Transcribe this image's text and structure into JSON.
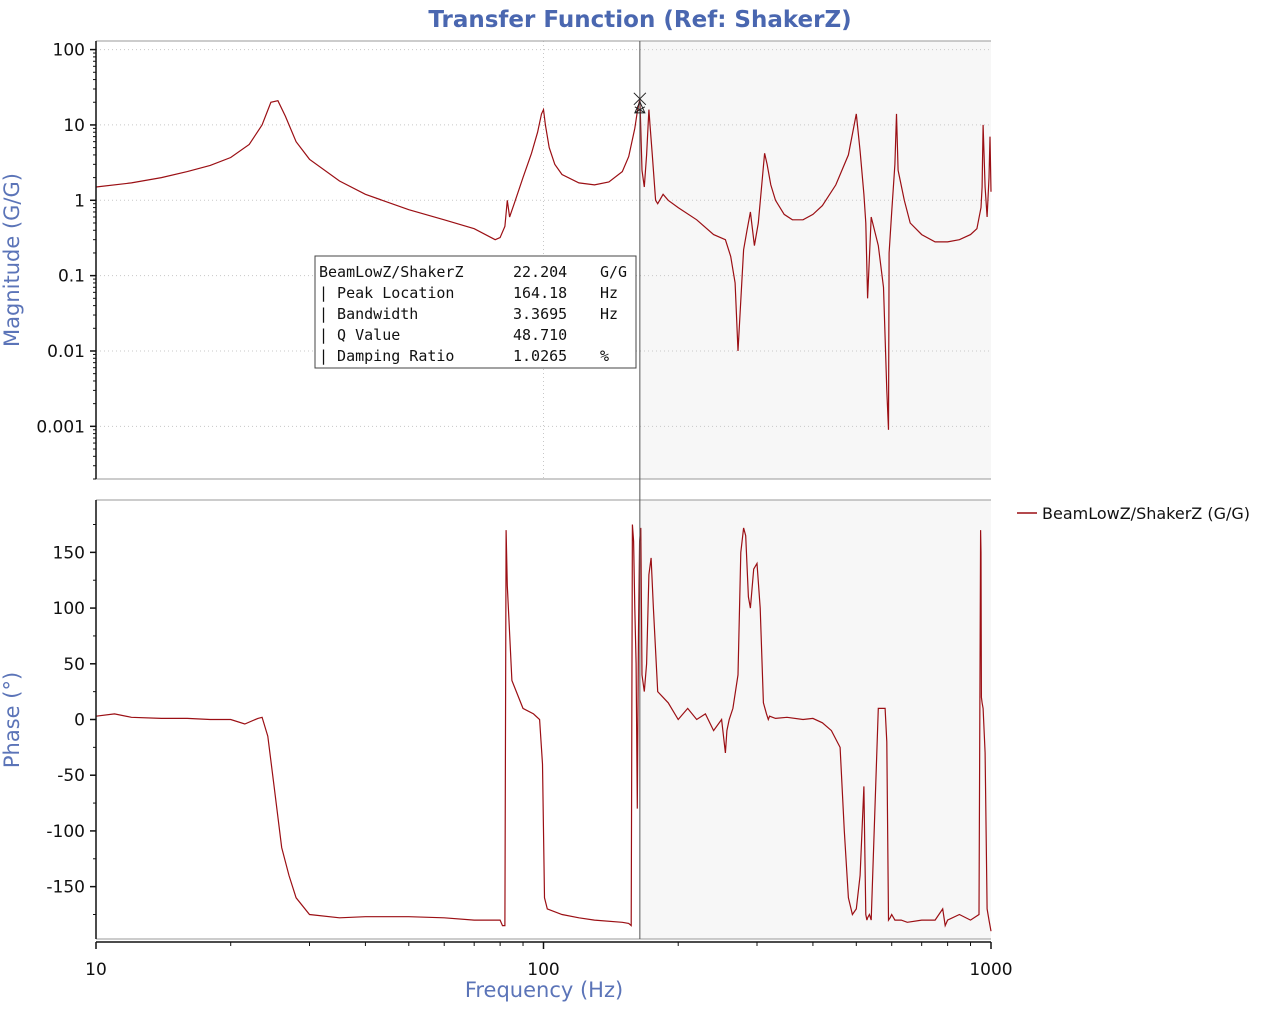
{
  "chart_data": {
    "type": "line",
    "title": "Transfer Function (Ref: ShakerZ)",
    "xlabel": "Frequency (Hz)",
    "x_scale": "log",
    "xlim": [
      10,
      1000
    ],
    "x_ticks": [
      "10",
      "100",
      "1000"
    ],
    "legend_position": "right",
    "magnitude": {
      "ylabel": "Magnitude (G/G)",
      "y_scale": "log",
      "ylim": [
        0.0002,
        130
      ],
      "y_ticks": [
        "100",
        "10",
        "1",
        "0.1",
        "0.01",
        "0.001"
      ]
    },
    "phase": {
      "ylabel": "Phase (°)",
      "ylim": [
        -197,
        197
      ],
      "y_ticks": [
        "150",
        "100",
        "50",
        "0",
        "-50",
        "-100",
        "-150"
      ]
    },
    "series": [
      {
        "name": "BeamLowZ/ShakerZ (G/G)",
        "color": "#9b0f14",
        "magnitude": {
          "x": [
            10,
            12,
            14,
            16,
            18,
            20,
            22,
            23.5,
            24.6,
            25.5,
            26.5,
            28,
            30,
            35,
            40,
            50,
            60,
            70,
            78,
            80,
            82,
            83,
            84,
            86,
            90,
            94,
            97,
            99,
            100,
            101,
            103,
            106,
            110,
            120,
            130,
            140,
            150,
            155,
            160,
            162,
            164.18,
            166,
            168,
            170,
            172,
            173,
            175,
            178,
            180,
            185,
            190,
            200,
            220,
            240,
            255,
            262,
            268,
            272,
            280,
            285,
            290,
            296,
            302,
            308,
            312,
            316,
            322,
            330,
            345,
            360,
            380,
            400,
            420,
            450,
            480,
            500,
            510,
            520,
            525,
            530,
            540,
            560,
            575,
            585,
            590,
            592,
            600,
            610,
            615,
            620,
            640,
            660,
            700,
            750,
            800,
            850,
            900,
            930,
            950,
            955,
            960,
            970,
            980,
            990,
            995,
            1000
          ],
          "y": [
            1.5,
            1.7,
            2.0,
            2.4,
            2.9,
            3.7,
            5.5,
            10,
            20,
            21,
            13,
            6,
            3.5,
            1.8,
            1.2,
            0.75,
            0.55,
            0.42,
            0.3,
            0.32,
            0.45,
            1.0,
            0.6,
            0.9,
            2.0,
            4.2,
            8.0,
            14,
            16,
            10,
            5,
            3,
            2.2,
            1.7,
            1.6,
            1.75,
            2.4,
            3.8,
            9,
            15,
            22.2,
            2.5,
            1.5,
            4.0,
            16,
            10,
            4,
            1.0,
            0.9,
            1.2,
            1.0,
            0.8,
            0.55,
            0.35,
            0.3,
            0.18,
            0.08,
            0.01,
            0.22,
            0.4,
            0.7,
            0.25,
            0.5,
            1.8,
            4.2,
            3.0,
            1.6,
            1.0,
            0.65,
            0.55,
            0.55,
            0.65,
            0.85,
            1.6,
            4.0,
            14,
            4.5,
            1.2,
            0.5,
            0.05,
            0.6,
            0.25,
            0.07,
            0.003,
            0.0009,
            0.2,
            0.7,
            3.0,
            14,
            2.5,
            1.0,
            0.5,
            0.35,
            0.28,
            0.28,
            0.3,
            0.35,
            0.42,
            0.8,
            1.5,
            10,
            1.5,
            0.6,
            2.0,
            7.0,
            1.3
          ]
        },
        "phase": {
          "x": [
            10,
            11,
            12,
            14,
            16,
            18,
            20,
            21.5,
            23,
            23.5,
            24.2,
            25,
            26,
            27,
            28,
            30,
            35,
            40,
            50,
            60,
            70,
            80,
            81,
            82,
            82.5,
            83,
            85,
            90,
            95,
            98,
            99.5,
            100.5,
            102,
            110,
            120,
            130,
            150,
            155,
            157,
            158,
            159,
            160,
            161,
            162,
            163,
            164,
            165,
            166,
            168,
            170,
            172,
            174,
            176,
            180,
            190,
            200,
            210,
            220,
            230,
            240,
            250,
            255,
            257,
            260,
            265,
            272,
            276,
            280,
            283,
            287,
            290,
            295,
            300,
            305,
            310,
            315,
            318,
            320,
            330,
            350,
            380,
            400,
            420,
            440,
            460,
            470,
            480,
            490,
            500,
            510,
            520,
            522,
            525,
            528,
            530,
            535,
            540,
            560,
            580,
            585,
            590,
            595,
            600,
            610,
            620,
            630,
            650,
            700,
            750,
            780,
            790,
            800,
            850,
            900,
            940,
            948,
            950,
            952,
            955,
            960,
            970,
            980,
            990,
            995,
            1000
          ],
          "y": [
            3,
            5,
            2,
            1,
            1,
            0,
            0,
            -4,
            1,
            2,
            -15,
            -60,
            -115,
            -140,
            -160,
            -175,
            -178,
            -177,
            -177,
            -178,
            -180,
            -180,
            -185,
            -185,
            170,
            120,
            35,
            10,
            5,
            0,
            -40,
            -160,
            -170,
            -175,
            -178,
            -180,
            -182,
            -183,
            -185,
            175,
            160,
            100,
            50,
            -80,
            80,
            160,
            172,
            40,
            25,
            50,
            130,
            145,
            100,
            25,
            15,
            0,
            10,
            0,
            5,
            -10,
            0,
            -30,
            -10,
            0,
            10,
            40,
            150,
            172,
            165,
            110,
            100,
            135,
            140,
            100,
            15,
            5,
            0,
            3,
            1,
            2,
            0,
            1,
            -3,
            -10,
            -25,
            -100,
            -160,
            -175,
            -170,
            -140,
            -60,
            -110,
            -175,
            -180,
            -178,
            -175,
            -180,
            10,
            10,
            -20,
            -180,
            -178,
            -175,
            -180,
            -180,
            -180,
            -182,
            -180,
            -180,
            -170,
            -185,
            -180,
            -175,
            -180,
            -175,
            170,
            150,
            20,
            15,
            10,
            -30,
            -170,
            -180,
            -185,
            -190
          ]
        }
      }
    ],
    "cursor": {
      "readout": [
        {
          "label": "BeamLowZ/ShakerZ",
          "value": "22.204",
          "unit": "G/G"
        },
        {
          "label": "| Peak Location",
          "value": "164.18",
          "unit": "Hz"
        },
        {
          "label": "| Bandwidth",
          "value": "3.3695",
          "unit": "Hz"
        },
        {
          "label": "| Q Value",
          "value": "48.710",
          "unit": ""
        },
        {
          "label": "| Damping Ratio",
          "value": "1.0265",
          "unit": "%"
        }
      ],
      "frequency": 164.18,
      "peak": 22.204
    }
  }
}
